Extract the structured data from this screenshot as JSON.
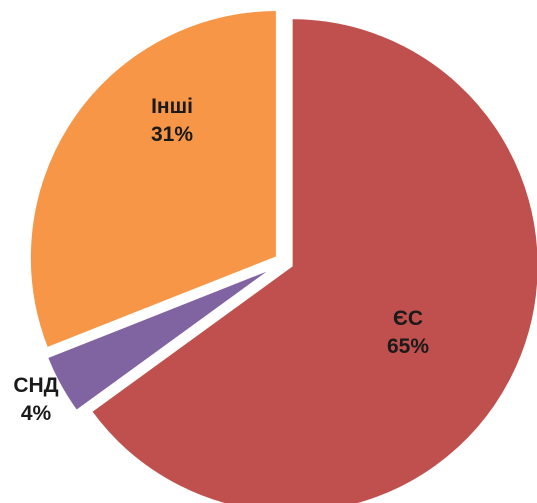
{
  "chart_data": {
    "type": "pie",
    "categories": [
      "ЄС",
      "СНД",
      "Інші"
    ],
    "values": [
      65,
      4,
      31
    ],
    "value_labels": [
      "65%",
      "4%",
      "31%"
    ],
    "colors": [
      "#c0504d",
      "#8064a2",
      "#f79646"
    ]
  }
}
